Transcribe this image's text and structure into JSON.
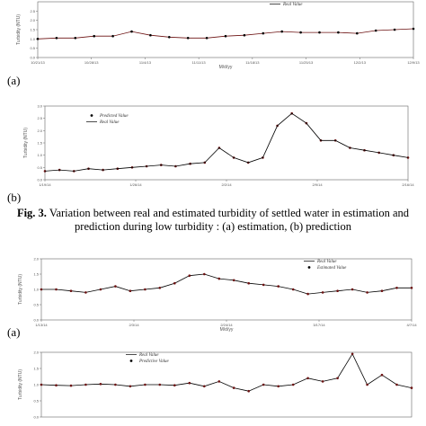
{
  "caption": {
    "fig_label": "Fig. 3.",
    "text": " Variation between real and estimated turbidity of settled water in estimation and prediction during low turbidity : (a) estimation, (b) prediction"
  },
  "panel_labels": [
    "(a)",
    "(b)",
    "(a)"
  ],
  "colors": {
    "predicted": "#6b1010",
    "real": "#000000"
  },
  "chart_data": [
    {
      "type": "line",
      "panel": "(a)",
      "ylabel": "Turbidity (NTU)",
      "xlabel": "M/d/yy",
      "legend_labels": [
        "Real Value"
      ],
      "ylim": [
        0,
        3
      ],
      "y_ticks": [
        "0.0",
        "0.5",
        "1.0",
        "1.5",
        "2.0",
        "2.5"
      ],
      "x_ticks": [
        "10/21/13",
        "10/28/13",
        "11/4/13",
        "11/11/13",
        "11/18/13",
        "11/25/13",
        "12/2/13",
        "12/9/13"
      ],
      "x": [
        0,
        0.05,
        0.1,
        0.15,
        0.2,
        0.25,
        0.3,
        0.35,
        0.4,
        0.45,
        0.5,
        0.55,
        0.6,
        0.65,
        0.7,
        0.75,
        0.8,
        0.85,
        0.9,
        0.95,
        1
      ],
      "series": [
        {
          "values": [
            1.0,
            1.05,
            1.05,
            1.15,
            1.15,
            1.4,
            1.2,
            1.1,
            1.05,
            1.05,
            1.15,
            1.2,
            1.3,
            1.4,
            1.35,
            1.35,
            1.35,
            1.3,
            1.45,
            1.5,
            1.55
          ]
        }
      ]
    },
    {
      "type": "line",
      "panel": "(b)",
      "ylabel": "Turbidity (NTU)",
      "xlabel": "",
      "legend_labels": [
        "Predicted Value",
        "Real Value"
      ],
      "ylim": [
        0.0,
        3.0
      ],
      "y_ticks": [
        "0.0",
        "0.5",
        "1.0",
        "1.5",
        "2.0",
        "2.5",
        "3.0"
      ],
      "x_ticks": [
        "1/19/14",
        "1/26/14",
        "2/2/14",
        "2/9/14",
        "2/16/14"
      ],
      "x": [
        0,
        0.04,
        0.08,
        0.12,
        0.16,
        0.2,
        0.24,
        0.28,
        0.32,
        0.36,
        0.4,
        0.44,
        0.48,
        0.52,
        0.56,
        0.6,
        0.64,
        0.68,
        0.72,
        0.76,
        0.8,
        0.84,
        0.88,
        0.92,
        0.96,
        1
      ],
      "series": [
        {
          "name": "Predicted Value",
          "values": [
            0.35,
            0.4,
            0.35,
            0.45,
            0.4,
            0.45,
            0.5,
            0.55,
            0.6,
            0.55,
            0.65,
            0.7,
            1.3,
            0.9,
            0.7,
            0.9,
            2.2,
            2.7,
            2.3,
            1.6,
            1.6,
            1.3,
            1.2,
            1.1,
            1.0,
            0.9
          ]
        },
        {
          "name": "Real Value",
          "values": [
            0.35,
            0.4,
            0.35,
            0.45,
            0.4,
            0.45,
            0.5,
            0.55,
            0.6,
            0.55,
            0.65,
            0.7,
            1.3,
            0.9,
            0.7,
            0.9,
            2.2,
            2.7,
            2.3,
            1.6,
            1.6,
            1.3,
            1.2,
            1.1,
            1.0,
            0.9
          ]
        }
      ]
    },
    {
      "type": "line",
      "panel": "(a)",
      "ylabel": "Turbidity (NTU)",
      "xlabel": "M/d/yy",
      "legend_labels": [
        "Real Value",
        "Estimated Value"
      ],
      "ylim": [
        0,
        2.0
      ],
      "y_ticks": [
        "0.0",
        "0.5",
        "1.0",
        "1.5",
        "2.0"
      ],
      "x_ticks": [
        "1/13/14",
        "2/3/14",
        "2/24/14",
        "3/17/14",
        "4/7/14"
      ],
      "x": [
        0,
        0.04,
        0.08,
        0.12,
        0.16,
        0.2,
        0.24,
        0.28,
        0.32,
        0.36,
        0.4,
        0.44,
        0.48,
        0.52,
        0.56,
        0.6,
        0.64,
        0.68,
        0.72,
        0.76,
        0.8,
        0.84,
        0.88,
        0.92,
        0.96,
        1
      ],
      "series": [
        {
          "name": "Real Value",
          "values": [
            1.0,
            1.0,
            0.95,
            0.9,
            1.0,
            1.1,
            0.95,
            1.0,
            1.05,
            1.2,
            1.45,
            1.5,
            1.35,
            1.3,
            1.2,
            1.15,
            1.1,
            1.0,
            0.85,
            0.9,
            0.95,
            1.0,
            0.9,
            0.95,
            1.05,
            1.05
          ]
        },
        {
          "name": "Estimated Value",
          "values": [
            1.0,
            1.0,
            0.95,
            0.9,
            1.0,
            1.1,
            0.95,
            1.0,
            1.05,
            1.2,
            1.45,
            1.5,
            1.35,
            1.3,
            1.2,
            1.15,
            1.1,
            1.0,
            0.85,
            0.9,
            0.95,
            1.0,
            0.9,
            0.95,
            1.05,
            1.05
          ]
        }
      ]
    },
    {
      "type": "line",
      "panel": "(b)",
      "ylabel": "Turbidity (NTU)",
      "xlabel": "",
      "legend_labels": [
        "Real Value",
        "Predictive Value"
      ],
      "ylim": [
        0,
        2.0
      ],
      "y_ticks": [
        "0.0",
        "0.5",
        "1.0",
        "1.5",
        "2.0"
      ],
      "x_ticks": [],
      "x": [
        0,
        0.04,
        0.08,
        0.12,
        0.16,
        0.2,
        0.24,
        0.28,
        0.32,
        0.36,
        0.4,
        0.44,
        0.48,
        0.52,
        0.56,
        0.6,
        0.64,
        0.68,
        0.72,
        0.76,
        0.8,
        0.84,
        0.88,
        0.92,
        0.96,
        1
      ],
      "series": [
        {
          "name": "Real Value",
          "values": [
            1.0,
            0.98,
            0.97,
            1.0,
            1.02,
            1.0,
            0.95,
            1.0,
            1.0,
            0.98,
            1.05,
            0.95,
            1.1,
            0.9,
            0.8,
            1.0,
            0.95,
            1.0,
            1.2,
            1.1,
            1.2,
            1.95,
            1.0,
            1.3,
            1.0,
            0.9
          ]
        },
        {
          "name": "Predictive Value",
          "values": [
            1.0,
            0.98,
            0.97,
            1.0,
            1.02,
            1.0,
            0.95,
            1.0,
            1.0,
            0.98,
            1.05,
            0.95,
            1.1,
            0.9,
            0.8,
            1.0,
            0.95,
            1.0,
            1.2,
            1.1,
            1.2,
            1.95,
            1.0,
            1.3,
            1.0,
            0.9
          ]
        }
      ]
    }
  ]
}
